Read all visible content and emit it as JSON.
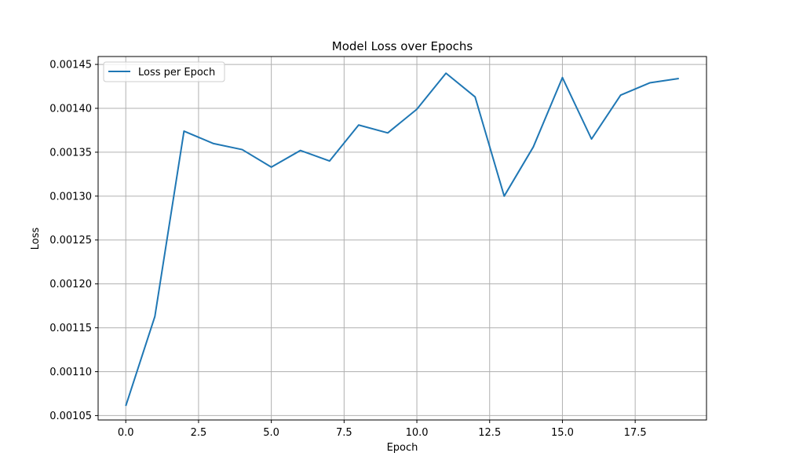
{
  "chart_data": {
    "type": "line",
    "title": "Model Loss over Epochs",
    "xlabel": "Epoch",
    "ylabel": "Loss",
    "xlim": [
      -0.95,
      19.95
    ],
    "ylim": [
      0.001045,
      0.001459
    ],
    "xticks": [
      0.0,
      2.5,
      5.0,
      7.5,
      10.0,
      12.5,
      15.0,
      17.5
    ],
    "xtick_labels": [
      "0.0",
      "2.5",
      "5.0",
      "7.5",
      "10.0",
      "12.5",
      "15.0",
      "17.5"
    ],
    "yticks": [
      0.00105,
      0.0011,
      0.00115,
      0.0012,
      0.00125,
      0.0013,
      0.00135,
      0.0014,
      0.00145
    ],
    "ytick_labels": [
      "0.00105",
      "0.00110",
      "0.00115",
      "0.00120",
      "0.00125",
      "0.00130",
      "0.00135",
      "0.00140",
      "0.00145"
    ],
    "grid": true,
    "legend_position": "top-left",
    "series": [
      {
        "name": "Loss per Epoch",
        "color": "#1f77b4",
        "x": [
          0,
          1,
          2,
          3,
          4,
          5,
          6,
          7,
          8,
          9,
          10,
          11,
          12,
          13,
          14,
          15,
          16,
          17,
          18,
          19
        ],
        "y": [
          0.001061,
          0.001163,
          0.001374,
          0.00136,
          0.001353,
          0.001333,
          0.001352,
          0.00134,
          0.001381,
          0.001372,
          0.001399,
          0.00144,
          0.001413,
          0.0013,
          0.001356,
          0.001435,
          0.001365,
          0.001415,
          0.001429,
          0.001434
        ]
      }
    ]
  }
}
